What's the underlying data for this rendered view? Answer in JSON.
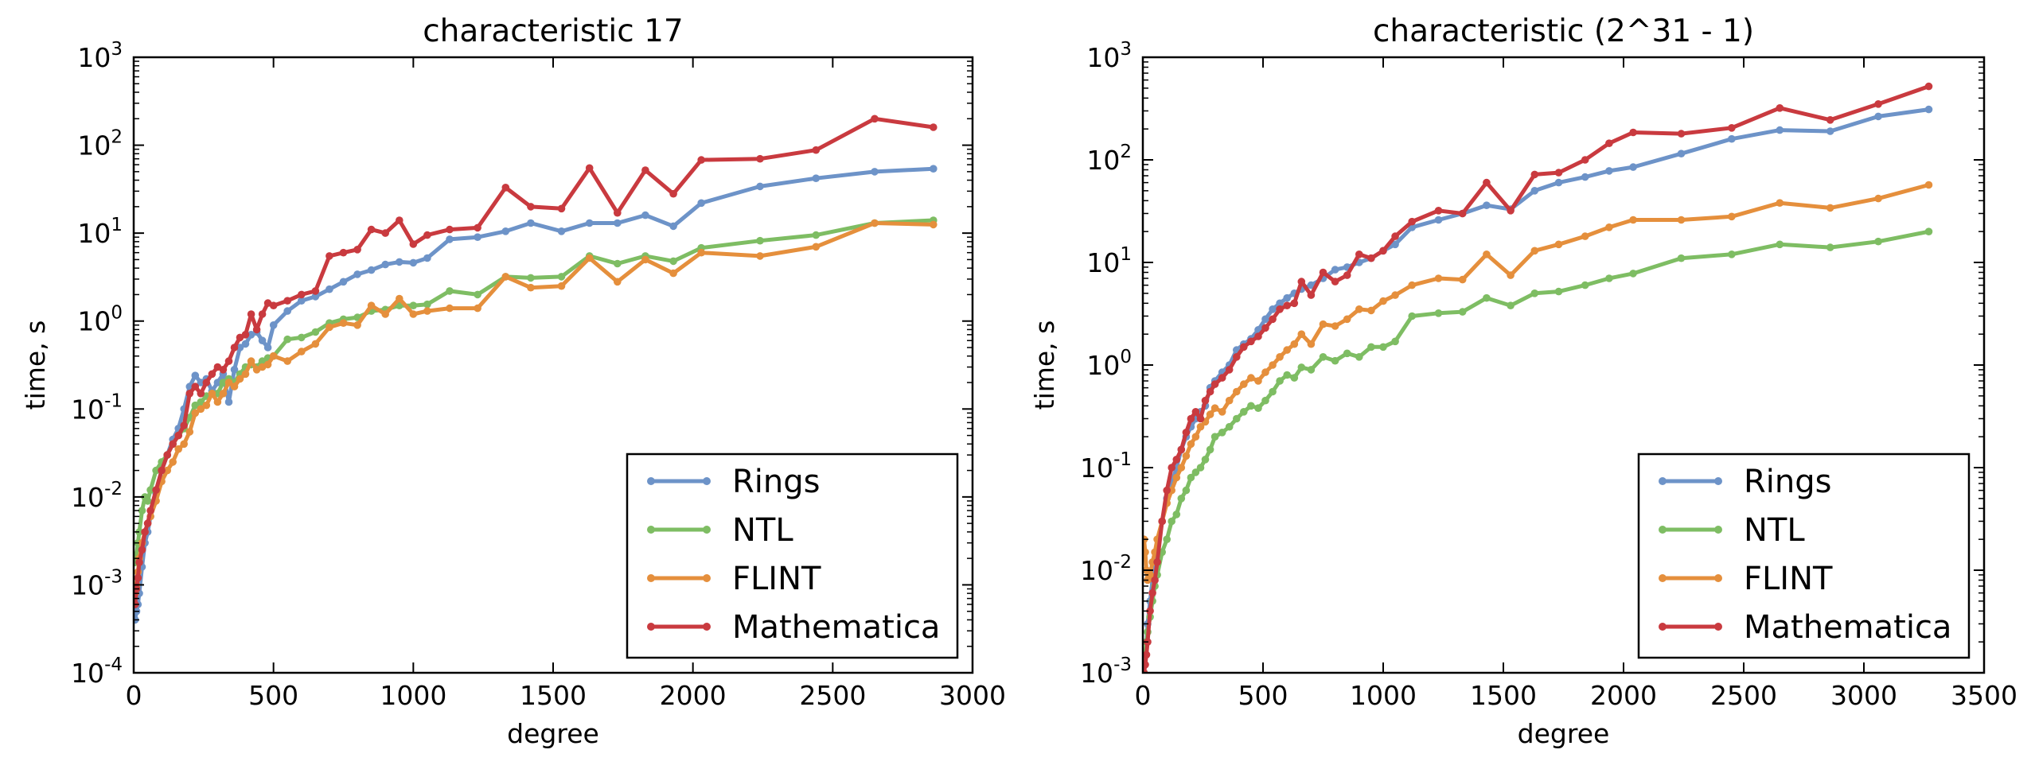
{
  "chart_data": [
    {
      "type": "line",
      "title": "characteristic 17",
      "xlabel": "degree",
      "ylabel": "time, s",
      "xlim": [
        0,
        3000
      ],
      "ylim": [
        0.0001,
        1000
      ],
      "yscale": "log",
      "grid": false,
      "legend_position": "lower right",
      "x_ticks": [
        "0",
        "500",
        "1000",
        "1500",
        "2000",
        "2500",
        "3000"
      ],
      "y_ticks": [
        "10-4",
        "10-3",
        "10-2",
        "10-1",
        "100",
        "101",
        "102",
        "103"
      ],
      "y_tick_base": "10",
      "y_tick_exponents": [
        "-4",
        "-3",
        "-2",
        "-1",
        "0",
        "1",
        "2",
        "3"
      ],
      "series": [
        {
          "name": "Rings",
          "color": "#6d93c8",
          "x": [
            5,
            10,
            15,
            20,
            30,
            40,
            50,
            60,
            80,
            100,
            120,
            140,
            160,
            180,
            200,
            220,
            240,
            260,
            280,
            300,
            320,
            340,
            360,
            380,
            400,
            420,
            440,
            460,
            480,
            500,
            550,
            600,
            650,
            700,
            750,
            800,
            850,
            900,
            950,
            1000,
            1050,
            1130,
            1230,
            1330,
            1420,
            1530,
            1630,
            1730,
            1830,
            1930,
            2030,
            2240,
            2440,
            2650,
            2860
          ],
          "y": [
            0.0004,
            0.0005,
            0.0006,
            0.0008,
            0.0016,
            0.003,
            0.004,
            0.006,
            0.011,
            0.02,
            0.03,
            0.045,
            0.06,
            0.1,
            0.18,
            0.24,
            0.2,
            0.22,
            0.16,
            0.2,
            0.25,
            0.12,
            0.28,
            0.5,
            0.55,
            0.7,
            0.75,
            0.6,
            0.5,
            0.9,
            1.3,
            1.7,
            1.9,
            2.3,
            2.8,
            3.4,
            3.8,
            4.4,
            4.7,
            4.6,
            5.2,
            8.5,
            9,
            10.5,
            13,
            10.5,
            13,
            13,
            16,
            12,
            22,
            34,
            42,
            50,
            54
          ]
        },
        {
          "name": "NTL",
          "color": "#7ebd63",
          "x": [
            5,
            10,
            15,
            20,
            30,
            40,
            50,
            60,
            80,
            100,
            120,
            140,
            160,
            180,
            200,
            220,
            240,
            260,
            280,
            300,
            320,
            340,
            360,
            380,
            400,
            420,
            440,
            460,
            480,
            500,
            550,
            600,
            650,
            700,
            750,
            800,
            850,
            900,
            950,
            1000,
            1050,
            1130,
            1230,
            1330,
            1420,
            1530,
            1630,
            1730,
            1830,
            1930,
            2030,
            2240,
            2440,
            2650,
            2860
          ],
          "y": [
            0.0018,
            0.0022,
            0.003,
            0.004,
            0.007,
            0.01,
            0.009,
            0.012,
            0.02,
            0.025,
            0.03,
            0.04,
            0.05,
            0.06,
            0.08,
            0.11,
            0.12,
            0.14,
            0.15,
            0.15,
            0.2,
            0.22,
            0.2,
            0.25,
            0.3,
            0.32,
            0.3,
            0.35,
            0.38,
            0.4,
            0.62,
            0.65,
            0.75,
            0.95,
            1.05,
            1.1,
            1.3,
            1.35,
            1.5,
            1.5,
            1.55,
            2.2,
            2.0,
            3.2,
            3.1,
            3.2,
            5.5,
            4.5,
            5.5,
            4.8,
            6.8,
            8.2,
            9.5,
            13,
            14
          ]
        },
        {
          "name": "FLINT",
          "color": "#e58f3c",
          "x": [
            5,
            10,
            15,
            20,
            30,
            40,
            50,
            60,
            80,
            100,
            120,
            140,
            160,
            180,
            200,
            220,
            240,
            260,
            280,
            300,
            320,
            340,
            360,
            380,
            400,
            420,
            440,
            460,
            480,
            500,
            550,
            600,
            650,
            700,
            750,
            800,
            850,
            900,
            950,
            1000,
            1050,
            1130,
            1230,
            1330,
            1420,
            1530,
            1630,
            1730,
            1830,
            1930,
            2030,
            2240,
            2440,
            2650,
            2860
          ],
          "y": [
            0.0008,
            0.001,
            0.0014,
            0.002,
            0.003,
            0.004,
            0.005,
            0.006,
            0.009,
            0.015,
            0.02,
            0.025,
            0.035,
            0.04,
            0.055,
            0.09,
            0.1,
            0.11,
            0.15,
            0.12,
            0.15,
            0.2,
            0.18,
            0.22,
            0.25,
            0.35,
            0.28,
            0.3,
            0.32,
            0.4,
            0.35,
            0.45,
            0.55,
            0.85,
            0.95,
            0.9,
            1.5,
            1.2,
            1.8,
            1.2,
            1.3,
            1.4,
            1.4,
            3.2,
            2.4,
            2.5,
            5.2,
            2.8,
            5.0,
            3.5,
            6.0,
            5.5,
            7.0,
            13,
            12.5
          ]
        },
        {
          "name": "Mathematica",
          "color": "#c93a3f",
          "x": [
            5,
            10,
            15,
            20,
            30,
            40,
            50,
            60,
            80,
            100,
            120,
            140,
            160,
            180,
            200,
            220,
            240,
            260,
            280,
            300,
            320,
            340,
            360,
            380,
            400,
            420,
            440,
            460,
            480,
            500,
            550,
            600,
            650,
            700,
            750,
            800,
            850,
            900,
            950,
            1000,
            1050,
            1130,
            1230,
            1330,
            1420,
            1530,
            1630,
            1730,
            1830,
            1930,
            2030,
            2240,
            2440,
            2650,
            2860
          ],
          "y": [
            0.0006,
            0.0009,
            0.0012,
            0.0018,
            0.0025,
            0.004,
            0.005,
            0.007,
            0.012,
            0.02,
            0.03,
            0.04,
            0.05,
            0.065,
            0.15,
            0.18,
            0.15,
            0.2,
            0.25,
            0.3,
            0.28,
            0.35,
            0.5,
            0.65,
            0.7,
            1.2,
            0.8,
            1.2,
            1.6,
            1.5,
            1.7,
            2.0,
            2.2,
            5.5,
            6.0,
            6.5,
            11,
            10,
            14,
            7.5,
            9.5,
            11,
            11.5,
            33,
            20,
            19,
            55,
            17,
            52,
            28,
            68,
            70,
            88,
            200,
            160
          ]
        }
      ]
    },
    {
      "type": "line",
      "title": "characteristic (2^31 - 1)",
      "xlabel": "degree",
      "ylabel": "time, s",
      "xlim": [
        0,
        3500
      ],
      "ylim": [
        0.001,
        1000
      ],
      "yscale": "log",
      "grid": false,
      "legend_position": "lower right",
      "x_ticks": [
        "0",
        "500",
        "1000",
        "1500",
        "2000",
        "2500",
        "3000",
        "3500"
      ],
      "y_ticks": [
        "10-3",
        "10-2",
        "10-1",
        "100",
        "101",
        "102",
        "103"
      ],
      "y_tick_base": "10",
      "y_tick_exponents": [
        "-3",
        "-2",
        "-1",
        "0",
        "1",
        "2",
        "3"
      ],
      "series": [
        {
          "name": "Rings",
          "color": "#6d93c8",
          "x": [
            5,
            10,
            15,
            20,
            30,
            40,
            50,
            60,
            80,
            100,
            120,
            140,
            160,
            180,
            200,
            220,
            240,
            260,
            280,
            300,
            330,
            360,
            390,
            420,
            450,
            480,
            510,
            540,
            570,
            600,
            630,
            660,
            700,
            750,
            800,
            850,
            900,
            950,
            1000,
            1050,
            1120,
            1230,
            1330,
            1430,
            1530,
            1630,
            1730,
            1840,
            1940,
            2040,
            2240,
            2450,
            2650,
            2860,
            3060,
            3270
          ],
          "y": [
            0.001,
            0.0015,
            0.002,
            0.003,
            0.005,
            0.008,
            0.01,
            0.015,
            0.03,
            0.05,
            0.07,
            0.1,
            0.15,
            0.2,
            0.25,
            0.3,
            0.35,
            0.4,
            0.6,
            0.7,
            0.85,
            1.0,
            1.4,
            1.6,
            1.8,
            2.2,
            2.8,
            3.5,
            4.0,
            4.5,
            5.0,
            5.5,
            6.0,
            7.0,
            8.5,
            9.0,
            10,
            11,
            13,
            15,
            22,
            26,
            30,
            36,
            33,
            50,
            60,
            68,
            78,
            85,
            115,
            160,
            195,
            190,
            265,
            310
          ]
        },
        {
          "name": "NTL",
          "color": "#7ebd63",
          "x": [
            5,
            10,
            15,
            20,
            30,
            40,
            50,
            60,
            80,
            100,
            120,
            140,
            160,
            180,
            200,
            220,
            240,
            260,
            280,
            300,
            330,
            360,
            390,
            420,
            450,
            480,
            510,
            540,
            570,
            600,
            630,
            660,
            700,
            750,
            800,
            850,
            900,
            950,
            1000,
            1050,
            1120,
            1230,
            1330,
            1430,
            1530,
            1630,
            1730,
            1840,
            1940,
            2040,
            2240,
            2450,
            2650,
            2860,
            3060,
            3270
          ],
          "y": [
            0.001,
            0.0015,
            0.002,
            0.0025,
            0.0035,
            0.005,
            0.007,
            0.009,
            0.015,
            0.02,
            0.03,
            0.035,
            0.05,
            0.06,
            0.08,
            0.09,
            0.1,
            0.12,
            0.15,
            0.2,
            0.22,
            0.25,
            0.3,
            0.35,
            0.4,
            0.38,
            0.45,
            0.55,
            0.7,
            0.8,
            0.75,
            0.95,
            0.9,
            1.2,
            1.1,
            1.3,
            1.2,
            1.5,
            1.5,
            1.7,
            3.0,
            3.2,
            3.3,
            4.5,
            3.8,
            5.0,
            5.2,
            6.0,
            7.0,
            7.8,
            11,
            12,
            15,
            14,
            16,
            20
          ]
        },
        {
          "name": "FLINT",
          "color": "#e58f3c",
          "x": [
            5,
            10,
            15,
            20,
            30,
            40,
            50,
            60,
            80,
            100,
            120,
            140,
            160,
            180,
            200,
            220,
            240,
            260,
            280,
            300,
            330,
            360,
            390,
            420,
            450,
            480,
            510,
            540,
            570,
            600,
            630,
            660,
            700,
            750,
            800,
            850,
            900,
            950,
            1000,
            1050,
            1120,
            1230,
            1330,
            1430,
            1530,
            1630,
            1730,
            1840,
            1940,
            2040,
            2240,
            2450,
            2650,
            2860,
            3060,
            3270
          ],
          "y": [
            0.02,
            0.015,
            0.01,
            0.008,
            0.009,
            0.012,
            0.015,
            0.02,
            0.03,
            0.045,
            0.06,
            0.08,
            0.1,
            0.13,
            0.17,
            0.2,
            0.25,
            0.28,
            0.33,
            0.38,
            0.35,
            0.45,
            0.55,
            0.65,
            0.75,
            0.7,
            0.85,
            1.0,
            1.2,
            1.4,
            1.6,
            2.0,
            1.6,
            2.5,
            2.4,
            2.8,
            3.5,
            3.4,
            4.2,
            4.8,
            6.0,
            7.0,
            6.8,
            12,
            7.5,
            13,
            15,
            18,
            22,
            26,
            26,
            28,
            38,
            34,
            42,
            57
          ]
        },
        {
          "name": "Mathematica",
          "color": "#c93a3f",
          "x": [
            5,
            10,
            15,
            20,
            30,
            40,
            50,
            60,
            80,
            100,
            120,
            140,
            160,
            180,
            200,
            220,
            240,
            260,
            280,
            300,
            330,
            360,
            390,
            420,
            450,
            480,
            510,
            540,
            570,
            600,
            630,
            660,
            700,
            750,
            800,
            850,
            900,
            950,
            1000,
            1050,
            1120,
            1230,
            1330,
            1430,
            1530,
            1630,
            1730,
            1840,
            1940,
            2040,
            2240,
            2450,
            2650,
            2860,
            3060,
            3270
          ],
          "y": [
            0.001,
            0.0012,
            0.0015,
            0.002,
            0.004,
            0.006,
            0.008,
            0.012,
            0.03,
            0.06,
            0.1,
            0.12,
            0.15,
            0.22,
            0.3,
            0.35,
            0.3,
            0.45,
            0.55,
            0.65,
            0.75,
            0.9,
            1.2,
            1.5,
            1.7,
            1.9,
            2.3,
            2.8,
            3.5,
            3.8,
            4.0,
            6.5,
            4.8,
            8.0,
            6.5,
            7.5,
            12,
            11,
            13,
            18,
            25,
            32,
            30,
            60,
            32,
            72,
            75,
            100,
            145,
            185,
            180,
            205,
            320,
            245,
            350,
            520
          ]
        }
      ]
    }
  ]
}
